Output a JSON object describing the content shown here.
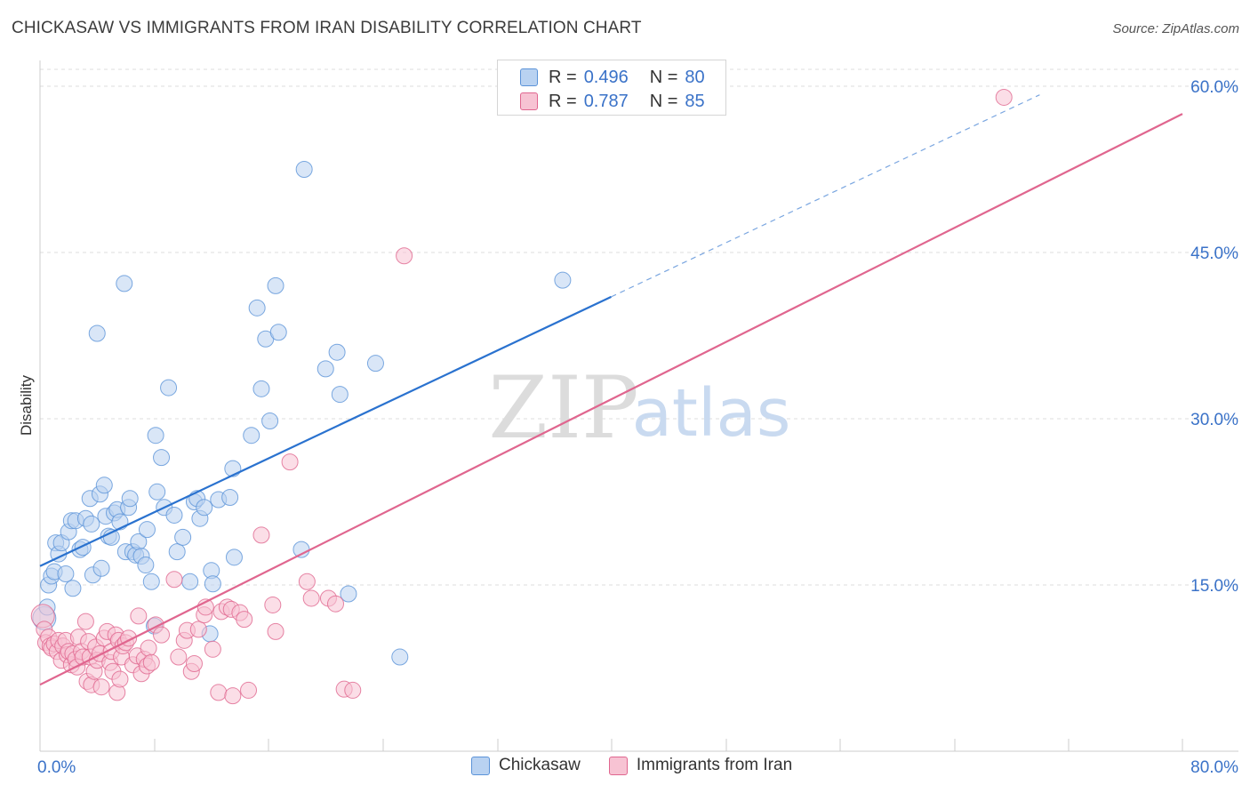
{
  "chart_data": {
    "type": "scatter",
    "title": "CHICKASAW VS IMMIGRANTS FROM IRAN DISABILITY CORRELATION CHART",
    "source": "Source: ZipAtlas.com",
    "ylabel": "Disability",
    "xlabel": "",
    "xlim": [
      0,
      80
    ],
    "ylim": [
      0,
      60
    ],
    "x_tick_labels": {
      "min": "0.0%",
      "max": "80.0%"
    },
    "y_ticks": [
      15,
      30,
      45,
      60
    ],
    "y_tick_labels": [
      "15.0%",
      "30.0%",
      "45.0%",
      "60.0%"
    ],
    "grid": true,
    "watermark": {
      "zip": "ZIP",
      "atlas": "atlas"
    },
    "legend": {
      "r_label": "R =",
      "n_label": "N =",
      "entries": [
        {
          "name": "Chickasaw",
          "r": "0.496",
          "n": "80"
        },
        {
          "name": "Immigrants from Iran",
          "r": "0.787",
          "n": "85"
        }
      ]
    },
    "series": [
      {
        "name": "Chickasaw",
        "color": "#5b93d8",
        "fill": "#b9d2f1",
        "trend": {
          "x0": 0,
          "y0": 16.7,
          "x1": 40,
          "y1": 41.0,
          "dash_to_x": 70
        },
        "points": [
          [
            0.3,
            12.0
          ],
          [
            0.5,
            13.0
          ],
          [
            0.6,
            15.0
          ],
          [
            0.8,
            15.8
          ],
          [
            1.0,
            16.2
          ],
          [
            1.1,
            18.8
          ],
          [
            1.3,
            17.8
          ],
          [
            1.5,
            18.8
          ],
          [
            1.8,
            16.0
          ],
          [
            2.0,
            19.8
          ],
          [
            2.2,
            20.8
          ],
          [
            2.3,
            14.7
          ],
          [
            2.5,
            20.8
          ],
          [
            2.8,
            18.2
          ],
          [
            3.0,
            18.4
          ],
          [
            3.2,
            21.0
          ],
          [
            3.5,
            22.8
          ],
          [
            3.6,
            20.5
          ],
          [
            3.7,
            15.9
          ],
          [
            4.0,
            37.7
          ],
          [
            4.2,
            23.2
          ],
          [
            4.3,
            16.5
          ],
          [
            4.5,
            24.0
          ],
          [
            4.6,
            21.2
          ],
          [
            4.8,
            19.4
          ],
          [
            5.0,
            19.3
          ],
          [
            5.2,
            21.5
          ],
          [
            5.4,
            21.8
          ],
          [
            5.6,
            20.7
          ],
          [
            5.9,
            42.2
          ],
          [
            6.0,
            18.0
          ],
          [
            6.2,
            22.0
          ],
          [
            6.3,
            22.8
          ],
          [
            6.5,
            18.0
          ],
          [
            6.7,
            17.7
          ],
          [
            6.9,
            18.9
          ],
          [
            7.1,
            17.6
          ],
          [
            7.4,
            16.8
          ],
          [
            7.5,
            20.0
          ],
          [
            7.8,
            15.3
          ],
          [
            8.0,
            11.3
          ],
          [
            8.2,
            23.4
          ],
          [
            8.1,
            28.5
          ],
          [
            8.5,
            26.5
          ],
          [
            8.7,
            22.0
          ],
          [
            9.0,
            32.8
          ],
          [
            9.4,
            21.3
          ],
          [
            9.6,
            18.0
          ],
          [
            10.0,
            19.3
          ],
          [
            10.5,
            15.3
          ],
          [
            10.8,
            22.5
          ],
          [
            11.0,
            22.8
          ],
          [
            11.2,
            21.0
          ],
          [
            11.5,
            22.0
          ],
          [
            11.9,
            10.6
          ],
          [
            12.0,
            16.3
          ],
          [
            12.1,
            15.1
          ],
          [
            12.5,
            22.7
          ],
          [
            13.3,
            22.9
          ],
          [
            13.5,
            25.5
          ],
          [
            13.6,
            17.5
          ],
          [
            14.8,
            28.5
          ],
          [
            15.2,
            40.0
          ],
          [
            15.5,
            32.7
          ],
          [
            15.8,
            37.2
          ],
          [
            16.1,
            29.8
          ],
          [
            16.5,
            42.0
          ],
          [
            16.7,
            37.8
          ],
          [
            18.3,
            18.2
          ],
          [
            18.5,
            52.5
          ],
          [
            20.0,
            34.5
          ],
          [
            20.8,
            36.0
          ],
          [
            21.0,
            32.2
          ],
          [
            21.6,
            14.2
          ],
          [
            23.5,
            35.0
          ],
          [
            25.2,
            8.5
          ],
          [
            36.6,
            42.5
          ]
        ]
      },
      {
        "name": "Immigrants from Iran",
        "color": "#e0668f",
        "fill": "#f7c3d3",
        "trend": {
          "x0": 0,
          "y0": 6.0,
          "x1": 80,
          "y1": 57.5
        },
        "points": [
          [
            0.2,
            12.2
          ],
          [
            0.3,
            11.0
          ],
          [
            0.4,
            9.8
          ],
          [
            0.6,
            10.3
          ],
          [
            0.7,
            9.5
          ],
          [
            0.8,
            9.3
          ],
          [
            1.0,
            9.7
          ],
          [
            1.2,
            9.0
          ],
          [
            1.3,
            10.0
          ],
          [
            1.5,
            8.2
          ],
          [
            1.6,
            9.5
          ],
          [
            1.8,
            10.0
          ],
          [
            1.9,
            8.7
          ],
          [
            2.0,
            9.0
          ],
          [
            2.2,
            7.8
          ],
          [
            2.3,
            8.8
          ],
          [
            2.5,
            8.3
          ],
          [
            2.6,
            7.6
          ],
          [
            2.7,
            10.3
          ],
          [
            2.9,
            9.0
          ],
          [
            3.0,
            8.5
          ],
          [
            3.2,
            11.7
          ],
          [
            3.3,
            6.3
          ],
          [
            3.4,
            9.9
          ],
          [
            3.5,
            8.5
          ],
          [
            3.6,
            6.0
          ],
          [
            3.8,
            7.2
          ],
          [
            3.9,
            9.4
          ],
          [
            4.0,
            8.2
          ],
          [
            4.2,
            8.8
          ],
          [
            4.3,
            5.8
          ],
          [
            4.5,
            10.2
          ],
          [
            4.7,
            10.8
          ],
          [
            4.9,
            8.0
          ],
          [
            5.0,
            9.0
          ],
          [
            5.1,
            7.2
          ],
          [
            5.3,
            10.5
          ],
          [
            5.4,
            5.3
          ],
          [
            5.5,
            10.0
          ],
          [
            5.6,
            6.5
          ],
          [
            5.7,
            8.5
          ],
          [
            5.8,
            9.5
          ],
          [
            6.0,
            9.8
          ],
          [
            6.2,
            10.2
          ],
          [
            6.5,
            7.8
          ],
          [
            6.8,
            8.6
          ],
          [
            6.9,
            12.2
          ],
          [
            7.1,
            7.0
          ],
          [
            7.3,
            8.3
          ],
          [
            7.5,
            7.7
          ],
          [
            7.6,
            9.3
          ],
          [
            7.8,
            8.0
          ],
          [
            8.1,
            11.4
          ],
          [
            8.5,
            10.5
          ],
          [
            9.4,
            15.5
          ],
          [
            9.7,
            8.5
          ],
          [
            10.1,
            10.0
          ],
          [
            10.3,
            10.9
          ],
          [
            10.6,
            7.2
          ],
          [
            10.8,
            7.9
          ],
          [
            11.1,
            11.0
          ],
          [
            11.5,
            12.3
          ],
          [
            11.6,
            13.0
          ],
          [
            12.1,
            9.2
          ],
          [
            12.5,
            5.3
          ],
          [
            12.7,
            12.6
          ],
          [
            13.1,
            13.0
          ],
          [
            13.4,
            12.8
          ],
          [
            13.5,
            5.0
          ],
          [
            14.0,
            12.5
          ],
          [
            14.3,
            11.9
          ],
          [
            14.6,
            5.5
          ],
          [
            15.5,
            19.5
          ],
          [
            16.3,
            13.2
          ],
          [
            16.5,
            10.8
          ],
          [
            17.5,
            26.1
          ],
          [
            18.7,
            15.3
          ],
          [
            19.0,
            13.8
          ],
          [
            20.2,
            13.8
          ],
          [
            20.7,
            13.3
          ],
          [
            21.3,
            5.6
          ],
          [
            21.9,
            5.5
          ],
          [
            25.5,
            44.7
          ],
          [
            67.5,
            59.0
          ]
        ]
      }
    ]
  }
}
